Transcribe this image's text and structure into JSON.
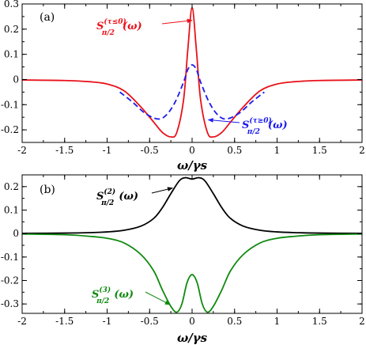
{
  "chart_data": [
    {
      "type": "line",
      "panel_label": "(a)",
      "xlabel": "ω/γs",
      "xlim": [
        -2,
        2
      ],
      "ylim": [
        -0.25,
        0.3
      ],
      "x_ticks": [
        -2,
        -1.5,
        -1,
        -0.5,
        0,
        0.5,
        1,
        1.5,
        2
      ],
      "x_tick_labels": [
        "-2",
        "-1.5",
        "-1",
        "-0.5",
        "0",
        "0.5",
        "1",
        "1.5",
        "2"
      ],
      "y_ticks": [
        0.3,
        0.2,
        0.1,
        0,
        -0.1,
        -0.2
      ],
      "y_tick_labels": [
        "0.3",
        "0.2",
        "0.1",
        "0",
        "-0.1",
        "-0.2"
      ],
      "grid": false,
      "series": [
        {
          "name": "S_{π/2}^{(τ≤0)}(ω)",
          "color": "#e8121a",
          "dash": "solid",
          "points": [
            [
              -2,
              -0.002
            ],
            [
              -1.5,
              -0.004
            ],
            [
              -1.2,
              -0.009
            ],
            [
              -1,
              -0.018
            ],
            [
              -0.8,
              -0.045
            ],
            [
              -0.6,
              -0.11
            ],
            [
              -0.45,
              -0.17
            ],
            [
              -0.35,
              -0.21
            ],
            [
              -0.25,
              -0.228
            ],
            [
              -0.18,
              -0.21
            ],
            [
              -0.1,
              -0.08
            ],
            [
              -0.05,
              0.12
            ],
            [
              0,
              0.285
            ],
            [
              0.05,
              0.12
            ],
            [
              0.1,
              -0.08
            ],
            [
              0.18,
              -0.21
            ],
            [
              0.25,
              -0.228
            ],
            [
              0.35,
              -0.21
            ],
            [
              0.45,
              -0.17
            ],
            [
              0.6,
              -0.11
            ],
            [
              0.8,
              -0.045
            ],
            [
              1,
              -0.018
            ],
            [
              1.2,
              -0.009
            ],
            [
              1.5,
              -0.004
            ],
            [
              2,
              -0.002
            ]
          ]
        },
        {
          "name": "S_{π/2}^{(τ≥0)}(ω)",
          "color": "#1a1aee",
          "dash": "dashed",
          "points": [
            [
              -0.85,
              -0.05
            ],
            [
              -0.7,
              -0.09
            ],
            [
              -0.55,
              -0.135
            ],
            [
              -0.4,
              -0.157
            ],
            [
              -0.3,
              -0.14
            ],
            [
              -0.2,
              -0.09
            ],
            [
              -0.1,
              -0.01
            ],
            [
              -0.05,
              0.04
            ],
            [
              0,
              0.058
            ],
            [
              0.05,
              0.04
            ],
            [
              0.1,
              -0.01
            ],
            [
              0.2,
              -0.09
            ],
            [
              0.3,
              -0.14
            ],
            [
              0.4,
              -0.157
            ],
            [
              0.55,
              -0.135
            ],
            [
              0.7,
              -0.09
            ],
            [
              0.85,
              -0.05
            ]
          ]
        }
      ],
      "annotations": [
        {
          "base": "S",
          "sub": "π/2",
          "sup": "(τ≤0)",
          "arg": "(ω)",
          "color": "#e8121a",
          "arrow_to": [
            0,
            0.235
          ]
        },
        {
          "base": "S",
          "sub": "π/2",
          "sup": "(τ≥0)",
          "arg": "(ω)",
          "color": "#1a1aee",
          "arrow_to": [
            0.19,
            -0.16
          ]
        }
      ]
    },
    {
      "type": "line",
      "panel_label": "(b)",
      "xlabel": "ω/γs",
      "xlim": [
        -2,
        2
      ],
      "ylim": [
        -0.34,
        0.25
      ],
      "x_ticks": [
        -2,
        -1.5,
        -1,
        -0.5,
        0,
        0.5,
        1,
        1.5,
        2
      ],
      "x_tick_labels": [
        "-2",
        "-1.5",
        "-1",
        "-0.5",
        "0",
        "0.5",
        "1",
        "1.5",
        "2"
      ],
      "y_ticks": [
        0.2,
        0.1,
        0,
        -0.1,
        -0.2,
        -0.3
      ],
      "y_tick_labels": [
        "0.2",
        "0.1",
        "0",
        "-0.1",
        "-0.2",
        "-0.3"
      ],
      "grid": false,
      "series": [
        {
          "name": "S_{π/2}^{(2)}(ω)",
          "color": "#000000",
          "dash": "solid",
          "points": [
            [
              -2,
              0.001
            ],
            [
              -1.5,
              0.002
            ],
            [
              -1.2,
              0.004
            ],
            [
              -1,
              0.007
            ],
            [
              -0.8,
              0.014
            ],
            [
              -0.6,
              0.032
            ],
            [
              -0.45,
              0.065
            ],
            [
              -0.35,
              0.11
            ],
            [
              -0.25,
              0.17
            ],
            [
              -0.15,
              0.225
            ],
            [
              -0.08,
              0.238
            ],
            [
              0,
              0.232
            ],
            [
              0.08,
              0.238
            ],
            [
              0.15,
              0.225
            ],
            [
              0.25,
              0.17
            ],
            [
              0.35,
              0.11
            ],
            [
              0.45,
              0.065
            ],
            [
              0.6,
              0.032
            ],
            [
              0.8,
              0.014
            ],
            [
              1,
              0.007
            ],
            [
              1.2,
              0.004
            ],
            [
              1.5,
              0.002
            ],
            [
              2,
              0.001
            ]
          ]
        },
        {
          "name": "S_{π/2}^{(3)}(ω)",
          "color": "#0f8a0f",
          "dash": "solid",
          "points": [
            [
              -2,
              -0.002
            ],
            [
              -1.5,
              -0.005
            ],
            [
              -1.2,
              -0.012
            ],
            [
              -1,
              -0.02
            ],
            [
              -0.8,
              -0.04
            ],
            [
              -0.6,
              -0.09
            ],
            [
              -0.45,
              -0.16
            ],
            [
              -0.35,
              -0.24
            ],
            [
              -0.25,
              -0.31
            ],
            [
              -0.18,
              -0.335
            ],
            [
              -0.12,
              -0.3
            ],
            [
              -0.06,
              -0.21
            ],
            [
              0,
              -0.175
            ],
            [
              0.06,
              -0.21
            ],
            [
              0.12,
              -0.3
            ],
            [
              0.18,
              -0.335
            ],
            [
              0.25,
              -0.31
            ],
            [
              0.35,
              -0.24
            ],
            [
              0.45,
              -0.16
            ],
            [
              0.6,
              -0.09
            ],
            [
              0.8,
              -0.04
            ],
            [
              1,
              -0.02
            ],
            [
              1.2,
              -0.012
            ],
            [
              1.5,
              -0.005
            ],
            [
              2,
              -0.002
            ]
          ]
        }
      ],
      "annotations": [
        {
          "base": "S",
          "sub": "π/2",
          "sup": "(2)",
          "arg": "(ω)",
          "color": "#000000",
          "arrow_to": [
            -0.23,
            0.194
          ]
        },
        {
          "base": "S",
          "sub": "π/2",
          "sup": "(3)",
          "arg": "(ω)",
          "color": "#0f8a0f",
          "arrow_to": [
            -0.26,
            -0.303
          ]
        }
      ]
    }
  ]
}
